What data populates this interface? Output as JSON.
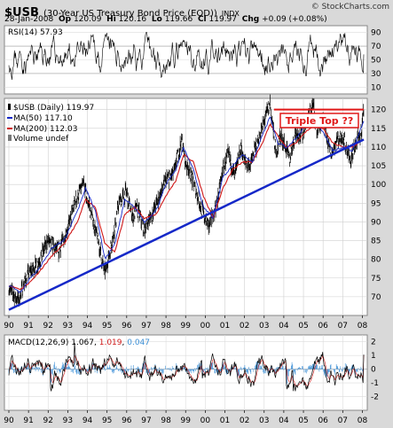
{
  "header": {
    "symbol": "$USB",
    "title": "(30-Year US Treasury Bond Price (EOD))",
    "exchange": "INDX",
    "date": "28-Jan-2008",
    "quote": [
      {
        "label": "Op",
        "value": "120.09"
      },
      {
        "label": "Hi",
        "value": "120.16"
      },
      {
        "label": "Lo",
        "value": "119.66"
      },
      {
        "label": "Cl",
        "value": "119.97"
      },
      {
        "label": "Chg",
        "value": "+0.09 (+0.08%)"
      }
    ],
    "credit": "© StockCharts.com"
  },
  "colors": {
    "price": "#000000",
    "ma50": "#1528c8",
    "ma200": "#d01818",
    "trendline": "#1528c8",
    "resistance": "#e01818",
    "rsi": "#000000",
    "macd": "#000000",
    "signal": "#d01818",
    "histogram": "#3c8fd6",
    "panel_bg": "#ffffff",
    "page_bg": "#d9d9d9"
  },
  "chart_data": [
    {
      "type": "line",
      "panel": "rsi",
      "title": "RSI(14) 57.93",
      "y_ticks": [
        10,
        30,
        50,
        70,
        90
      ],
      "ylim": [
        0,
        100
      ],
      "reference_lines": [
        30,
        70
      ],
      "legend_position": "top-left",
      "series": [
        {
          "name": "RSI(14)",
          "value": 57.93,
          "typical_range": [
            25,
            85
          ]
        }
      ]
    },
    {
      "type": "line",
      "panel": "price",
      "title": "$USB (Daily) 119.97",
      "ylim": [
        65,
        123
      ],
      "y_ticks": [
        70,
        75,
        80,
        85,
        90,
        95,
        100,
        105,
        110,
        115,
        120
      ],
      "x_ticks": [
        "90",
        "91",
        "92",
        "93",
        "94",
        "95",
        "96",
        "97",
        "98",
        "99",
        "00",
        "01",
        "02",
        "03",
        "04",
        "05",
        "06",
        "07",
        "08"
      ],
      "grid": true,
      "legend_position": "top-left",
      "legend": [
        {
          "label": "$USB (Daily) 119.97",
          "marker": "bar",
          "color": "#000000"
        },
        {
          "label": "MA(50) 117.10",
          "marker": "line",
          "color": "#1528c8"
        },
        {
          "label": "MA(200) 112.03",
          "marker": "line",
          "color": "#d01818"
        },
        {
          "label": "Volume undef",
          "marker": "bar",
          "color": "#777777"
        }
      ],
      "series": [
        {
          "name": "$USB (Daily)",
          "x": [
            1990.0,
            1990.5,
            1990.8,
            1991.0,
            1991.5,
            1992.0,
            1992.5,
            1993.0,
            1993.4,
            1993.8,
            1994.2,
            1994.5,
            1994.9,
            1995.3,
            1995.6,
            1996.0,
            1996.3,
            1996.5,
            1996.9,
            1997.3,
            1997.6,
            1998.0,
            1998.4,
            1998.8,
            1999.0,
            1999.5,
            1999.9,
            2000.2,
            2000.6,
            2000.9,
            2001.2,
            2001.5,
            2001.8,
            2002.0,
            2002.3,
            2002.7,
            2002.9,
            2003.3,
            2003.6,
            2003.8,
            2004.0,
            2004.3,
            2004.6,
            2004.9,
            2005.2,
            2005.5,
            2005.7,
            2006.0,
            2006.4,
            2006.7,
            2007.0,
            2007.4,
            2007.6,
            2007.9,
            2008.07
          ],
          "y": [
            72,
            69,
            74,
            76,
            79,
            85,
            82,
            88,
            96,
            100,
            92,
            86,
            76,
            86,
            95,
            98,
            91,
            94,
            88,
            92,
            96,
            101,
            103,
            112,
            106,
            99,
            92,
            89,
            95,
            104,
            108,
            102,
            110,
            106,
            105,
            112,
            115,
            122,
            108,
            113,
            111,
            107,
            114,
            113,
            118,
            121,
            114,
            117,
            108,
            112,
            113,
            106,
            110,
            113,
            119.97
          ]
        },
        {
          "name": "MA(50)",
          "value": 117.1,
          "x": [
            1990.0,
            1990.6,
            1991.1,
            1991.6,
            1992.2,
            1992.8,
            1993.5,
            1993.9,
            1994.4,
            1994.9,
            1995.4,
            1995.9,
            1996.4,
            1996.9,
            1997.5,
            1998.0,
            1998.5,
            1998.9,
            1999.4,
            1999.9,
            2000.4,
            2000.9,
            2001.4,
            2001.9,
            2002.4,
            2002.9,
            2003.3,
            2003.7,
            2004.1,
            2004.6,
            2005.1,
            2005.6,
            2006.0,
            2006.5,
            2007.0,
            2007.5,
            2008.07
          ],
          "y": [
            73,
            71,
            75,
            78,
            83,
            85,
            93,
            99,
            93,
            80,
            84,
            96,
            94,
            90,
            93,
            100,
            104,
            110,
            104,
            94,
            91,
            102,
            105,
            108,
            106,
            113,
            118,
            111,
            110,
            112,
            116,
            117,
            114,
            109,
            110,
            109,
            117.1
          ]
        },
        {
          "name": "MA(200)",
          "value": 112.03,
          "x": [
            1990.0,
            1990.6,
            1991.1,
            1991.6,
            1992.2,
            1992.8,
            1993.5,
            1993.9,
            1994.4,
            1994.9,
            1995.4,
            1995.9,
            1996.4,
            1996.9,
            1997.5,
            1998.0,
            1998.5,
            1998.9,
            1999.4,
            1999.9,
            2000.4,
            2000.9,
            2001.4,
            2001.9,
            2002.4,
            2002.9,
            2003.3,
            2003.7,
            2004.1,
            2004.6,
            2005.1,
            2005.6,
            2006.0,
            2006.5,
            2007.0,
            2007.5,
            2008.07
          ],
          "y": [
            73,
            72,
            74,
            77,
            81,
            84,
            90,
            96,
            94,
            84,
            82,
            92,
            94,
            91,
            92,
            97,
            101,
            108,
            106,
            97,
            91,
            99,
            104,
            106,
            106,
            111,
            116,
            113,
            110,
            111,
            114,
            116,
            115,
            111,
            110,
            110,
            112.03
          ]
        },
        {
          "name": "Trendline",
          "x": [
            1990.0,
            2008.07
          ],
          "y": [
            66.5,
            112
          ]
        },
        {
          "name": "Resistance",
          "x": [
            2003.5,
            2008.07
          ],
          "y": [
            120,
            120
          ]
        }
      ],
      "annotations": [
        {
          "text": "Triple Top ??",
          "color": "#e01818"
        }
      ]
    },
    {
      "type": "line",
      "panel": "macd",
      "title": "MACD(12,26,9)",
      "legend_position": "top-left",
      "ylim": [
        -3,
        2.5
      ],
      "y_ticks": [
        -2,
        -1,
        0,
        1,
        2
      ],
      "x_ticks": [
        "90",
        "91",
        "92",
        "93",
        "94",
        "95",
        "96",
        "97",
        "98",
        "99",
        "00",
        "01",
        "02",
        "03",
        "04",
        "05",
        "06",
        "07",
        "08"
      ],
      "series": [
        {
          "name": "MACD",
          "value": 1.067
        },
        {
          "name": "Signal",
          "value": 1.019
        },
        {
          "name": "Histogram",
          "value": 0.047
        }
      ]
    }
  ]
}
